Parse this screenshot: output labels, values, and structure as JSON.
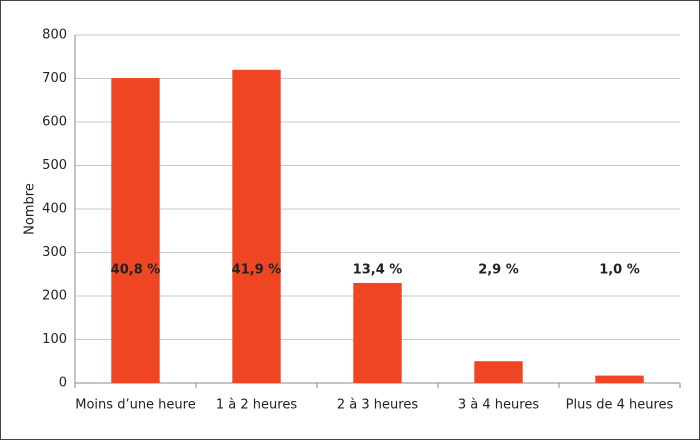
{
  "chart_data": {
    "type": "bar",
    "y_label": "Nombre",
    "categories": [
      "Moins d’une heure",
      "1 à 2 heures",
      "2 à 3 heures",
      "3 à 4 heures",
      "Plus de 4 heures"
    ],
    "values": [
      701,
      720,
      230,
      50,
      17
    ],
    "color": "#ee4523",
    "annotations": [
      "40,8 %",
      "41,9 %",
      "13,4 %",
      "2,9 %",
      "1,0 %"
    ],
    "ylim": [
      0,
      800
    ],
    "yticks": [
      0,
      100,
      200,
      300,
      400,
      500,
      600,
      700,
      800
    ],
    "grid": true
  }
}
